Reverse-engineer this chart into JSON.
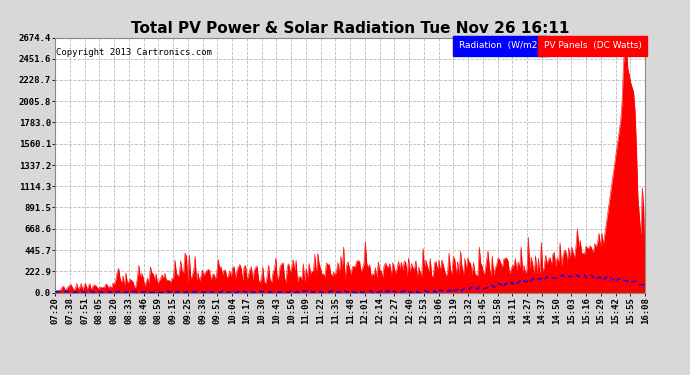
{
  "title": "Total PV Power & Solar Radiation Tue Nov 26 16:11",
  "copyright": "Copyright 2013 Cartronics.com",
  "legend_labels": [
    "Radiation  (W/m2)",
    "PV Panels  (DC Watts)"
  ],
  "ytick_labels": [
    "0.0",
    "222.9",
    "445.7",
    "668.6",
    "891.5",
    "1114.3",
    "1337.2",
    "1560.1",
    "1783.0",
    "2005.8",
    "2228.7",
    "2451.6",
    "2674.4"
  ],
  "ytick_values": [
    0.0,
    222.9,
    445.7,
    668.6,
    891.5,
    1114.3,
    1337.2,
    1560.1,
    1783.0,
    2005.8,
    2228.7,
    2451.6,
    2674.4
  ],
  "ymax": 2674.4,
  "ymin": 0.0,
  "xtick_labels": [
    "07:20",
    "07:38",
    "07:51",
    "08:05",
    "08:20",
    "08:33",
    "08:46",
    "08:59",
    "09:15",
    "09:25",
    "09:38",
    "09:51",
    "10:04",
    "10:17",
    "10:30",
    "10:43",
    "10:56",
    "11:09",
    "11:22",
    "11:35",
    "11:48",
    "12:01",
    "12:14",
    "12:27",
    "12:40",
    "12:53",
    "13:06",
    "13:19",
    "13:32",
    "13:45",
    "13:58",
    "14:11",
    "14:27",
    "14:37",
    "14:50",
    "15:03",
    "15:16",
    "15:29",
    "15:42",
    "15:55",
    "16:08"
  ],
  "bg_color": "#d8d8d8",
  "plot_bg_color": "#ffffff",
  "grid_color": "#bbbbbb",
  "pv_color": "#ff0000",
  "radiation_color": "#0000ff",
  "title_fontsize": 11,
  "tick_fontsize": 6.5,
  "copyright_fontsize": 6.5
}
